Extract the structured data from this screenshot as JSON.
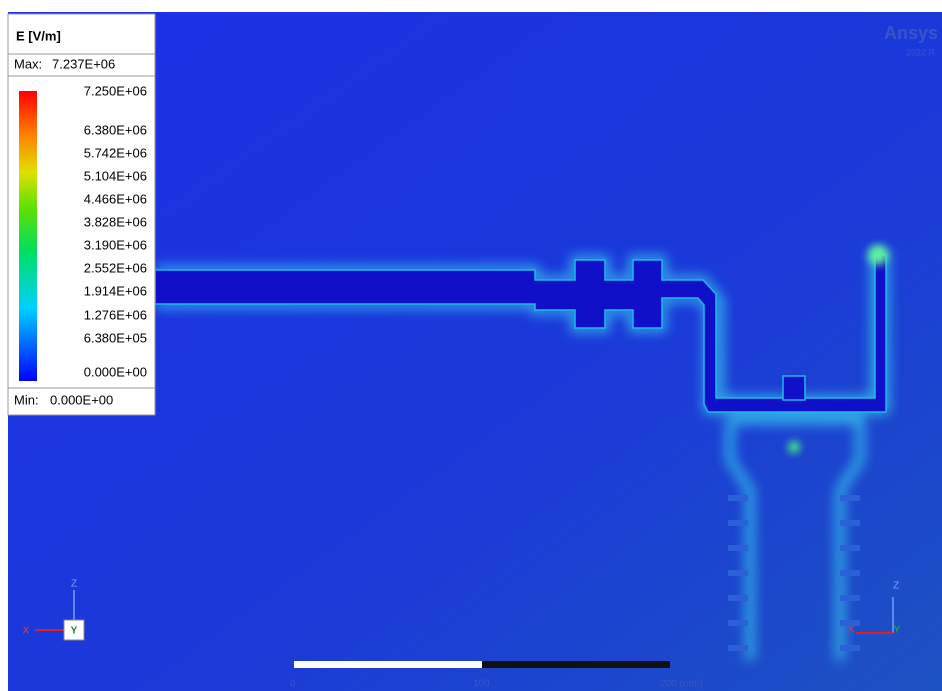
{
  "legend": {
    "title": "E [V/m]",
    "max_label": "Max:",
    "max_value": "7.237E+06",
    "levels": [
      "7.250E+06",
      "6.380E+06",
      "5.742E+06",
      "5.104E+06",
      "4.466E+06",
      "3.828E+06",
      "3.190E+06",
      "2.552E+06",
      "1.914E+06",
      "1.276E+06",
      "6.380E+05",
      "0.000E+00"
    ],
    "min_label": "Min:",
    "min_value": "0.000E+00"
  },
  "watermark": {
    "brand": "Ansys",
    "version": "2022 R"
  },
  "scale_bar": {
    "labels": [
      "0",
      "100",
      "200 (mm)"
    ]
  },
  "triad_left": {
    "z": "Z",
    "x": "X",
    "y": "Y"
  },
  "triad_right": {
    "z": "Z",
    "x": "X",
    "y": "Y"
  }
}
